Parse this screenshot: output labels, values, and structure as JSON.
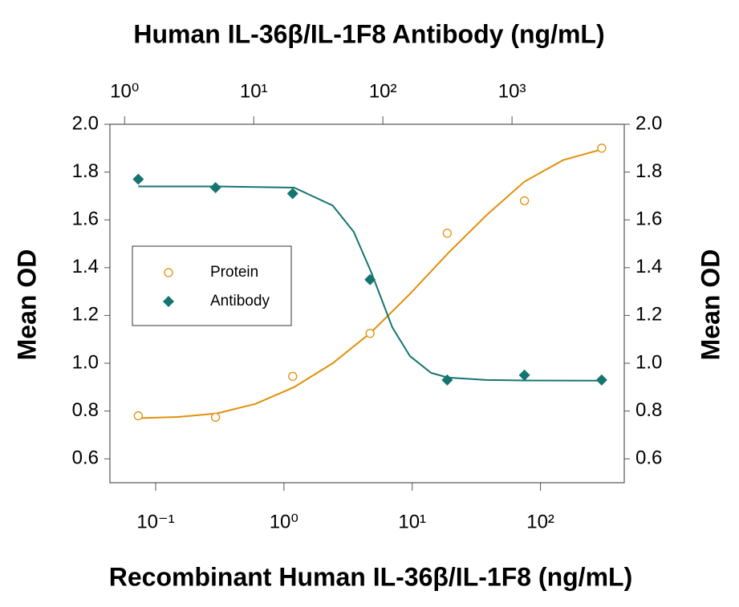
{
  "chart_data": {
    "type": "scatter",
    "title": "Human IL-36β/IL-1F8 Antibody (ng/mL)",
    "x_label": "Recombinant Human IL-36β/IL-1F8 (ng/mL)",
    "y_label": "Mean OD",
    "y2_label": "Mean OD",
    "xscale": "log",
    "x2scale": "log",
    "xlim": [
      0.044,
      450
    ],
    "xticks": [
      {
        "value": 0.1,
        "label": "10⁻¹"
      },
      {
        "value": 1,
        "label": "10⁰"
      },
      {
        "value": 10,
        "label": "10¹"
      },
      {
        "value": 100,
        "label": "10²"
      }
    ],
    "x2lim": [
      0.77,
      7400
    ],
    "x2ticks": [
      {
        "value": 1,
        "label": "10⁰"
      },
      {
        "value": 10,
        "label": "10¹"
      },
      {
        "value": 100,
        "label": "10²"
      },
      {
        "value": 1000,
        "label": "10³"
      }
    ],
    "ylim": [
      0.5,
      2.0
    ],
    "yticks": [
      0.6,
      0.8,
      {
        "value": 1.0,
        "label": "1.0"
      },
      1.2,
      1.4,
      1.6,
      1.8,
      {
        "value": 2.0,
        "label": "2.0"
      }
    ],
    "y2lim": [
      0.5,
      2.0
    ],
    "y2ticks": [
      0.6,
      0.8,
      {
        "value": 1.0,
        "label": "1.0"
      },
      1.2,
      1.4,
      1.6,
      1.8,
      {
        "value": 2.0,
        "label": "2.0"
      }
    ],
    "legend": "middle-left",
    "series": [
      {
        "name": "Protein",
        "color": "#e0900a",
        "marker": "circle",
        "x": [
          0.0732,
          0.293,
          1.17,
          4.69,
          18.75,
          75,
          300
        ],
        "values": [
          0.78,
          0.774,
          0.945,
          1.125,
          1.544,
          1.68,
          1.9
        ]
      },
      {
        "name": "Antibody",
        "color": "#14756f",
        "marker": "diamond",
        "x": [
          0.0732,
          0.293,
          1.17,
          4.69,
          18.75,
          75,
          300
        ],
        "values": [
          1.77,
          1.735,
          1.71,
          1.35,
          0.93,
          0.95,
          0.93
        ]
      }
    ],
    "curves": [
      {
        "color": "#e0900a",
        "x": [
          0.0732,
          0.15,
          0.3,
          0.6,
          1.2,
          2.4,
          4.8,
          9.6,
          19,
          38,
          75,
          150,
          300
        ],
        "values": [
          0.77,
          0.775,
          0.79,
          0.83,
          0.9,
          1.0,
          1.13,
          1.29,
          1.46,
          1.62,
          1.76,
          1.85,
          1.895
        ]
      },
      {
        "color": "#14756f",
        "x": [
          0.0732,
          0.3,
          1.2,
          2.4,
          3.5,
          4.8,
          7,
          9.6,
          14,
          19,
          38,
          75,
          300
        ],
        "values": [
          1.74,
          1.74,
          1.735,
          1.66,
          1.55,
          1.38,
          1.15,
          1.03,
          0.96,
          0.94,
          0.93,
          0.928,
          0.927
        ]
      }
    ]
  }
}
